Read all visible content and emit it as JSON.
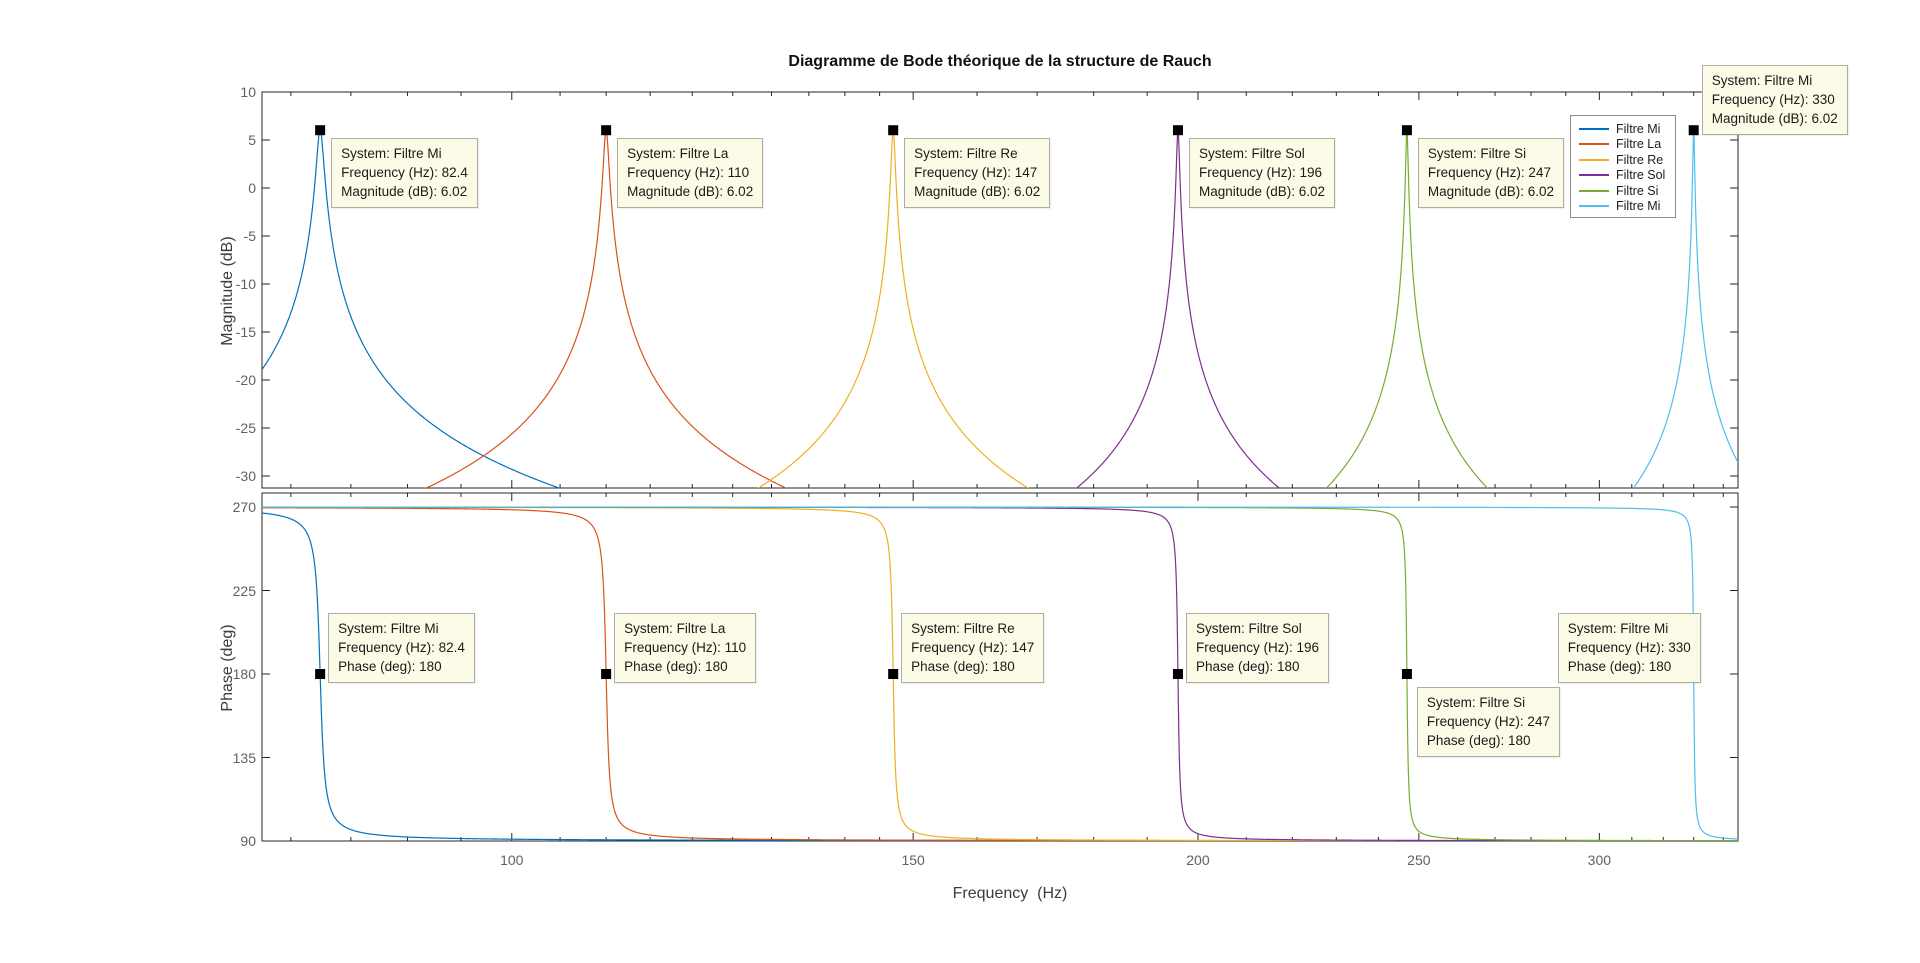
{
  "figure": {
    "title": "Diagramme de Bode théorique de la structure de Rauch",
    "background_color": "#ffffff",
    "axes_border_color": "#262626"
  },
  "axes": {
    "x": {
      "label": "Frequency  (Hz)",
      "scale": "log",
      "min": 77.7,
      "max": 345.1,
      "major_ticks": [
        100,
        150,
        200,
        250,
        300
      ],
      "minor_ticks": [
        80,
        85,
        90,
        95,
        105,
        110,
        115,
        120,
        125,
        130,
        135,
        140,
        145,
        160,
        170,
        180,
        190,
        210,
        220,
        230,
        240,
        260,
        270,
        280,
        290,
        310,
        320,
        330,
        340
      ]
    },
    "magnitude": {
      "label": "Magnitude (dB)",
      "min": -31.25,
      "max": 10,
      "ticks": [
        10,
        5,
        0,
        -5,
        -10,
        -15,
        -20,
        -25,
        -30
      ]
    },
    "phase": {
      "label": "Phase (deg)",
      "min": 90,
      "max": 277.5,
      "ticks": [
        270,
        225,
        180,
        135,
        90
      ]
    }
  },
  "chart_data": [
    {
      "type": "line",
      "subplot": "magnitude",
      "title": "Diagramme de Bode théorique de la structure de Rauch",
      "xlabel": "Frequency  (Hz)",
      "ylabel": "Magnitude (dB)",
      "x_scale": "log",
      "xlim": [
        77.7,
        345.1
      ],
      "ylim": [
        -31.25,
        10
      ],
      "grid": false,
      "legend_position": "upper-right-inside",
      "model": "second-order band-pass (Rauch / MFB), peak gain 6.02 dB (x2), constant bandwidth",
      "bandwidth_hz": 0.55,
      "series": [
        {
          "name": "Filtre Mi",
          "color": "#0072BD",
          "center_frequency_hz": 82.4,
          "peak_magnitude_db": 6.02
        },
        {
          "name": "Filtre La",
          "color": "#D95319",
          "center_frequency_hz": 110,
          "peak_magnitude_db": 6.02
        },
        {
          "name": "Filtre Re",
          "color": "#EDB120",
          "center_frequency_hz": 147,
          "peak_magnitude_db": 6.02
        },
        {
          "name": "Filtre Sol",
          "color": "#7E2F8E",
          "center_frequency_hz": 196,
          "peak_magnitude_db": 6.02
        },
        {
          "name": "Filtre Si",
          "color": "#77AC30",
          "center_frequency_hz": 247,
          "peak_magnitude_db": 6.02
        },
        {
          "name": "Filtre Mi",
          "color": "#4DBEEE",
          "center_frequency_hz": 330,
          "peak_magnitude_db": 6.02
        }
      ]
    },
    {
      "type": "line",
      "subplot": "phase",
      "xlabel": "Frequency  (Hz)",
      "ylabel": "Phase (deg)",
      "x_scale": "log",
      "xlim": [
        77.7,
        345.1
      ],
      "ylim": [
        90,
        277.5
      ],
      "grid": false,
      "model": "phase of inverting band-pass: 270 deg at low f, 180 deg at f0, 90 deg at high f",
      "bandwidth_hz": 0.55,
      "series": [
        {
          "name": "Filtre Mi",
          "color": "#0072BD",
          "center_frequency_hz": 82.4,
          "phase_at_center_deg": 180
        },
        {
          "name": "Filtre La",
          "color": "#D95319",
          "center_frequency_hz": 110,
          "phase_at_center_deg": 180
        },
        {
          "name": "Filtre Re",
          "color": "#EDB120",
          "center_frequency_hz": 147,
          "phase_at_center_deg": 180
        },
        {
          "name": "Filtre Sol",
          "color": "#7E2F8E",
          "center_frequency_hz": 196,
          "phase_at_center_deg": 180
        },
        {
          "name": "Filtre Si",
          "color": "#77AC30",
          "center_frequency_hz": 247,
          "phase_at_center_deg": 180
        },
        {
          "name": "Filtre Mi",
          "color": "#4DBEEE",
          "center_frequency_hz": 330,
          "phase_at_center_deg": 180
        }
      ]
    }
  ],
  "legend": {
    "items": [
      {
        "label": "Filtre Mi",
        "color": "#0072BD"
      },
      {
        "label": "Filtre La",
        "color": "#D95319"
      },
      {
        "label": "Filtre Re",
        "color": "#EDB120"
      },
      {
        "label": "Filtre Sol",
        "color": "#7E2F8E"
      },
      {
        "label": "Filtre Si",
        "color": "#77AC30"
      },
      {
        "label": "Filtre Mi",
        "color": "#4DBEEE"
      }
    ]
  },
  "datatips": {
    "magnitude": [
      {
        "anchor_frequency_hz": 82.4,
        "placement": "se",
        "lines": [
          "System: Filtre Mi",
          "Frequency (Hz): 82.4",
          "Magnitude (dB): 6.02"
        ]
      },
      {
        "anchor_frequency_hz": 110,
        "placement": "se",
        "lines": [
          "System: Filtre La",
          "Frequency (Hz): 110",
          "Magnitude (dB): 6.02"
        ]
      },
      {
        "anchor_frequency_hz": 147,
        "placement": "se",
        "lines": [
          "System: Filtre Re",
          "Frequency (Hz): 147",
          "Magnitude (dB): 6.02"
        ]
      },
      {
        "anchor_frequency_hz": 196,
        "placement": "se",
        "lines": [
          "System: Filtre Sol",
          "Frequency (Hz): 196",
          "Magnitude (dB): 6.02"
        ]
      },
      {
        "anchor_frequency_hz": 247,
        "placement": "se",
        "lines": [
          "System: Filtre Si",
          "Frequency (Hz): 247",
          "Magnitude (dB): 6.02"
        ]
      },
      {
        "anchor_frequency_hz": 330,
        "placement": "ne",
        "lines": [
          "System: Filtre Mi",
          "Frequency (Hz): 330",
          "Magnitude (dB): 6.02"
        ]
      }
    ],
    "phase": [
      {
        "anchor_frequency_hz": 82.4,
        "placement": "ne",
        "lines": [
          "System: Filtre Mi",
          "Frequency (Hz): 82.4",
          "Phase (deg): 180"
        ]
      },
      {
        "anchor_frequency_hz": 110,
        "placement": "ne",
        "lines": [
          "System: Filtre La",
          "Frequency (Hz): 110",
          "Phase (deg): 180"
        ]
      },
      {
        "anchor_frequency_hz": 147,
        "placement": "ne",
        "lines": [
          "System: Filtre Re",
          "Frequency (Hz): 147",
          "Phase (deg): 180"
        ]
      },
      {
        "anchor_frequency_hz": 196,
        "placement": "ne",
        "lines": [
          "System: Filtre Sol",
          "Frequency (Hz): 196",
          "Phase (deg): 180"
        ]
      },
      {
        "anchor_frequency_hz": 247,
        "placement": "se",
        "lines": [
          "System: Filtre Si",
          "Frequency (Hz): 247",
          "Phase (deg): 180"
        ]
      },
      {
        "anchor_frequency_hz": 330,
        "placement": "nw",
        "lines": [
          "System: Filtre Mi",
          "Frequency (Hz): 330",
          "Phase (deg): 180"
        ]
      }
    ]
  }
}
